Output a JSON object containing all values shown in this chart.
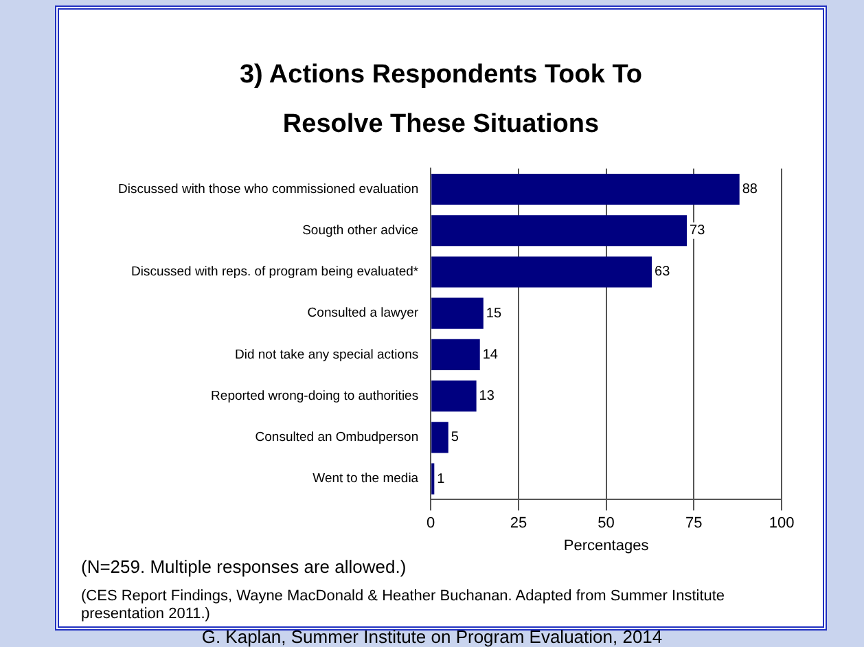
{
  "chart_data": {
    "type": "bar",
    "orientation": "horizontal",
    "title": "3)  Actions Respondents Took To Resolve These Situations",
    "categories": [
      "Discussed with those who commissioned evaluation",
      "Sougth other advice",
      "Discussed with reps. of program being evaluated*",
      "Consulted a lawyer",
      "Did not take any special actions",
      "Reported wrong-doing to authorities",
      "Consulted an Ombudperson",
      "Went to the media"
    ],
    "values": [
      88,
      73,
      63,
      15,
      14,
      13,
      5,
      1
    ],
    "color": "#000080",
    "xlabel": "Percentages",
    "xlim": [
      0,
      100
    ],
    "xticks": [
      0,
      25,
      50,
      75,
      100
    ],
    "grid": "x",
    "data_labels": true,
    "annotations": [
      "(N=259. Multiple responses are allowed.)",
      "(CES Report Findings, Wayne MacDonald & Heather Buchanan. Adapted from Summer Institute presentation 2011.)",
      "G. Kaplan, Summer Institute on Program Evaluation, 2014"
    ]
  }
}
